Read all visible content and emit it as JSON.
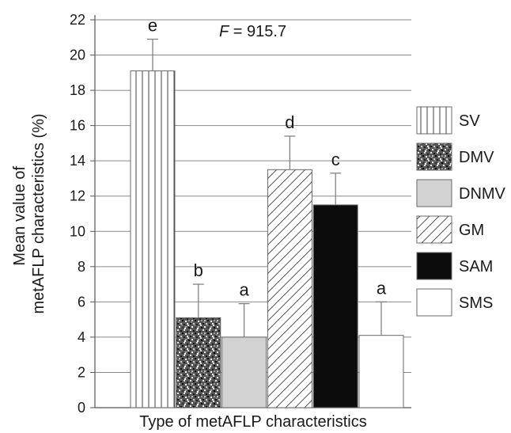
{
  "chart_data": {
    "type": "bar",
    "title": "",
    "annotation": {
      "italic": "F",
      "rest": " = 915.7"
    },
    "xlabel": "Type of metAFLP characteristics",
    "ylabel": "Mean value of metAFLP characteristics (%)",
    "ylabel_lines": [
      "Mean value of",
      "metAFLP characteristics (%)"
    ],
    "ylim": [
      0,
      22
    ],
    "yticks": [
      0,
      2,
      4,
      6,
      8,
      10,
      12,
      14,
      16,
      18,
      20,
      22
    ],
    "grid": true,
    "legend_position": "right",
    "categories": [
      "SV",
      "DMV",
      "DNMV",
      "GM",
      "SAM",
      "SMS"
    ],
    "values": [
      19.1,
      5.1,
      4.0,
      13.5,
      11.5,
      4.1
    ],
    "error_upper": [
      20.9,
      7.0,
      5.9,
      15.4,
      13.3,
      6.0
    ],
    "significance_letters": [
      "e",
      "b",
      "a",
      "d",
      "c",
      "a"
    ],
    "patterns": [
      "vertical-lines",
      "noise",
      "light-gray",
      "diagonal-hatch",
      "black",
      "white"
    ]
  }
}
